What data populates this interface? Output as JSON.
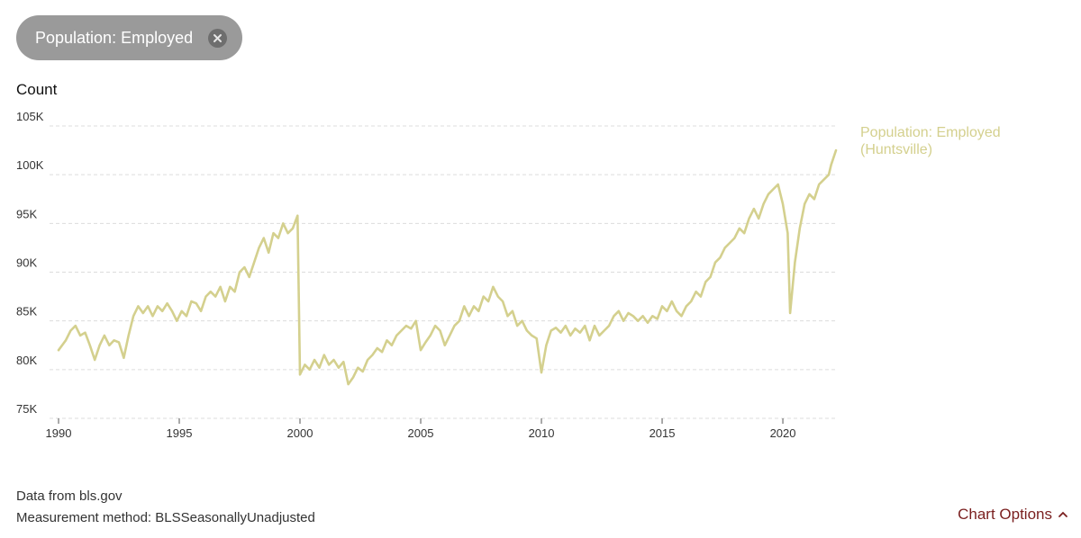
{
  "filter_chip": {
    "label": "Population: Employed"
  },
  "chart_data": {
    "type": "line",
    "ylabel": "Count",
    "ylim": [
      75000,
      105000
    ],
    "xlim": [
      1990,
      2022.2
    ],
    "yticks": [
      {
        "value": 75000,
        "label": "75K"
      },
      {
        "value": 80000,
        "label": "80K"
      },
      {
        "value": 85000,
        "label": "85K"
      },
      {
        "value": 90000,
        "label": "90K"
      },
      {
        "value": 95000,
        "label": "95K"
      },
      {
        "value": 100000,
        "label": "100K"
      },
      {
        "value": 105000,
        "label": "105K"
      }
    ],
    "xticks": [
      {
        "value": 1990,
        "label": "1990"
      },
      {
        "value": 1995,
        "label": "1995"
      },
      {
        "value": 2000,
        "label": "2000"
      },
      {
        "value": 2005,
        "label": "2005"
      },
      {
        "value": 2010,
        "label": "2010"
      },
      {
        "value": 2015,
        "label": "2015"
      },
      {
        "value": 2020,
        "label": "2020"
      }
    ],
    "grid": true,
    "series": [
      {
        "name": "Population: Employed (Huntsville)",
        "label_lines": [
          "Population: Employed",
          "(Huntsville)"
        ],
        "color": "#d4d08e",
        "points": [
          [
            1990.0,
            82000
          ],
          [
            1990.3,
            83000
          ],
          [
            1990.5,
            84000
          ],
          [
            1990.7,
            84500
          ],
          [
            1990.9,
            83500
          ],
          [
            1991.1,
            83800
          ],
          [
            1991.3,
            82500
          ],
          [
            1991.5,
            81000
          ],
          [
            1991.7,
            82500
          ],
          [
            1991.9,
            83500
          ],
          [
            1992.1,
            82500
          ],
          [
            1992.3,
            83000
          ],
          [
            1992.5,
            82800
          ],
          [
            1992.7,
            81200
          ],
          [
            1992.9,
            83500
          ],
          [
            1993.1,
            85500
          ],
          [
            1993.3,
            86500
          ],
          [
            1993.5,
            85800
          ],
          [
            1993.7,
            86500
          ],
          [
            1993.9,
            85500
          ],
          [
            1994.1,
            86500
          ],
          [
            1994.3,
            86000
          ],
          [
            1994.5,
            86800
          ],
          [
            1994.7,
            86000
          ],
          [
            1994.9,
            85000
          ],
          [
            1995.1,
            86000
          ],
          [
            1995.3,
            85500
          ],
          [
            1995.5,
            87000
          ],
          [
            1995.7,
            86800
          ],
          [
            1995.9,
            86000
          ],
          [
            1996.1,
            87500
          ],
          [
            1996.3,
            88000
          ],
          [
            1996.5,
            87500
          ],
          [
            1996.7,
            88500
          ],
          [
            1996.9,
            87000
          ],
          [
            1997.1,
            88500
          ],
          [
            1997.3,
            88000
          ],
          [
            1997.5,
            90000
          ],
          [
            1997.7,
            90500
          ],
          [
            1997.9,
            89500
          ],
          [
            1998.1,
            91000
          ],
          [
            1998.3,
            92500
          ],
          [
            1998.5,
            93500
          ],
          [
            1998.7,
            92000
          ],
          [
            1998.9,
            94000
          ],
          [
            1999.1,
            93500
          ],
          [
            1999.3,
            95000
          ],
          [
            1999.5,
            94000
          ],
          [
            1999.7,
            94500
          ],
          [
            1999.9,
            95800
          ],
          [
            2000.0,
            79500
          ],
          [
            2000.2,
            80500
          ],
          [
            2000.4,
            80000
          ],
          [
            2000.6,
            81000
          ],
          [
            2000.8,
            80200
          ],
          [
            2001.0,
            81500
          ],
          [
            2001.2,
            80500
          ],
          [
            2001.4,
            81000
          ],
          [
            2001.6,
            80200
          ],
          [
            2001.8,
            80800
          ],
          [
            2002.0,
            78500
          ],
          [
            2002.2,
            79200
          ],
          [
            2002.4,
            80200
          ],
          [
            2002.6,
            79800
          ],
          [
            2002.8,
            81000
          ],
          [
            2003.0,
            81500
          ],
          [
            2003.2,
            82200
          ],
          [
            2003.4,
            81800
          ],
          [
            2003.6,
            83000
          ],
          [
            2003.8,
            82500
          ],
          [
            2004.0,
            83500
          ],
          [
            2004.2,
            84000
          ],
          [
            2004.4,
            84500
          ],
          [
            2004.6,
            84200
          ],
          [
            2004.8,
            85000
          ],
          [
            2005.0,
            82000
          ],
          [
            2005.2,
            82800
          ],
          [
            2005.4,
            83500
          ],
          [
            2005.6,
            84500
          ],
          [
            2005.8,
            84000
          ],
          [
            2006.0,
            82500
          ],
          [
            2006.2,
            83500
          ],
          [
            2006.4,
            84500
          ],
          [
            2006.6,
            85000
          ],
          [
            2006.8,
            86500
          ],
          [
            2007.0,
            85500
          ],
          [
            2007.2,
            86500
          ],
          [
            2007.4,
            86000
          ],
          [
            2007.6,
            87500
          ],
          [
            2007.8,
            87000
          ],
          [
            2008.0,
            88500
          ],
          [
            2008.2,
            87500
          ],
          [
            2008.4,
            87000
          ],
          [
            2008.6,
            85500
          ],
          [
            2008.8,
            86000
          ],
          [
            2009.0,
            84500
          ],
          [
            2009.2,
            85000
          ],
          [
            2009.4,
            84000
          ],
          [
            2009.6,
            83500
          ],
          [
            2009.8,
            83200
          ],
          [
            2010.0,
            79700
          ],
          [
            2010.2,
            82500
          ],
          [
            2010.4,
            84000
          ],
          [
            2010.6,
            84300
          ],
          [
            2010.8,
            83800
          ],
          [
            2011.0,
            84500
          ],
          [
            2011.2,
            83500
          ],
          [
            2011.4,
            84200
          ],
          [
            2011.6,
            83800
          ],
          [
            2011.8,
            84500
          ],
          [
            2012.0,
            83000
          ],
          [
            2012.2,
            84500
          ],
          [
            2012.4,
            83500
          ],
          [
            2012.6,
            84000
          ],
          [
            2012.8,
            84500
          ],
          [
            2013.0,
            85500
          ],
          [
            2013.2,
            86000
          ],
          [
            2013.4,
            85000
          ],
          [
            2013.6,
            85800
          ],
          [
            2013.8,
            85500
          ],
          [
            2014.0,
            85000
          ],
          [
            2014.2,
            85500
          ],
          [
            2014.4,
            84800
          ],
          [
            2014.6,
            85500
          ],
          [
            2014.8,
            85200
          ],
          [
            2015.0,
            86500
          ],
          [
            2015.2,
            86000
          ],
          [
            2015.4,
            87000
          ],
          [
            2015.6,
            86000
          ],
          [
            2015.8,
            85500
          ],
          [
            2016.0,
            86500
          ],
          [
            2016.2,
            87000
          ],
          [
            2016.4,
            88000
          ],
          [
            2016.6,
            87500
          ],
          [
            2016.8,
            89000
          ],
          [
            2017.0,
            89500
          ],
          [
            2017.2,
            91000
          ],
          [
            2017.4,
            91500
          ],
          [
            2017.6,
            92500
          ],
          [
            2017.8,
            93000
          ],
          [
            2018.0,
            93500
          ],
          [
            2018.2,
            94500
          ],
          [
            2018.4,
            94000
          ],
          [
            2018.6,
            95500
          ],
          [
            2018.8,
            96500
          ],
          [
            2019.0,
            95500
          ],
          [
            2019.2,
            97000
          ],
          [
            2019.4,
            98000
          ],
          [
            2019.6,
            98500
          ],
          [
            2019.8,
            99000
          ],
          [
            2020.0,
            97000
          ],
          [
            2020.2,
            94000
          ],
          [
            2020.3,
            85800
          ],
          [
            2020.5,
            91000
          ],
          [
            2020.7,
            94500
          ],
          [
            2020.9,
            97000
          ],
          [
            2021.1,
            98000
          ],
          [
            2021.3,
            97500
          ],
          [
            2021.5,
            99000
          ],
          [
            2021.7,
            99500
          ],
          [
            2021.9,
            100000
          ],
          [
            2022.0,
            101000
          ],
          [
            2022.2,
            102500
          ]
        ]
      }
    ]
  },
  "footer": {
    "source": "Data from bls.gov",
    "method": "Measurement method: BLSSeasonallyUnadjusted"
  },
  "options_link": {
    "label": "Chart Options"
  }
}
